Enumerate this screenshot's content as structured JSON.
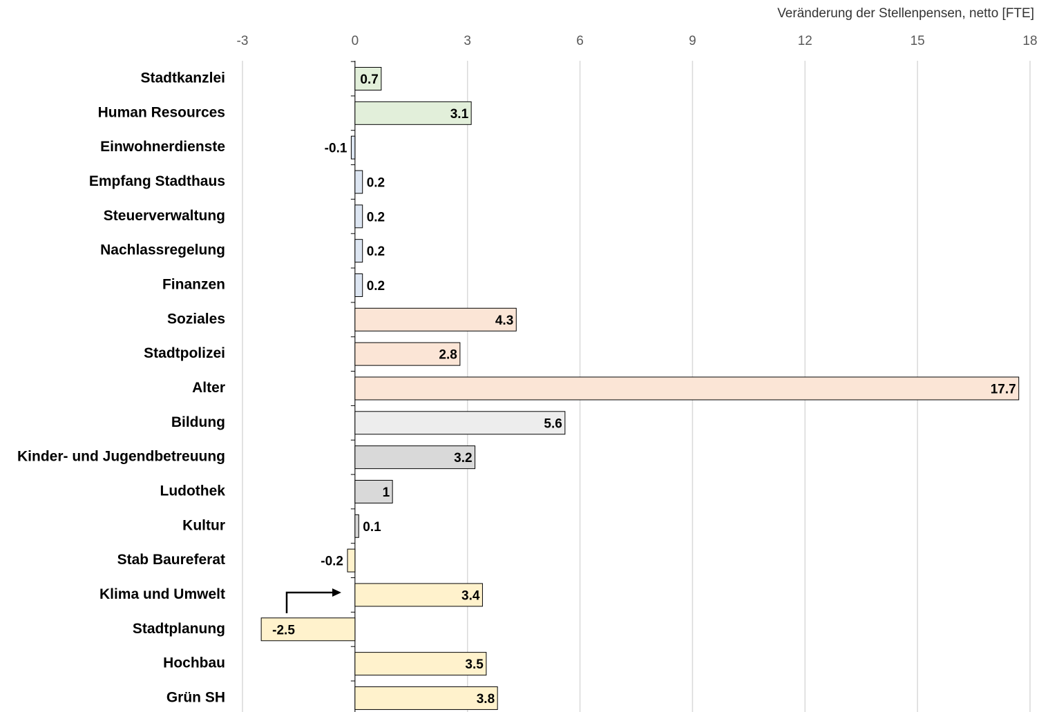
{
  "chart_data": {
    "type": "barh",
    "x_label": "Veränderung der Stellenpensen, netto [FTE]",
    "categories": [
      "Stadtkanzlei",
      "Human Resources",
      "Einwohnerdienste",
      "Empfang Stadthaus",
      "Steuerverwaltung",
      "Nachlassregelung",
      "Finanzen",
      "Soziales",
      "Stadtpolizei",
      "Alter",
      "Bildung",
      "Kinder- und Jugendbetreuung",
      "Ludothek",
      "Kultur",
      "Stab Baureferat",
      "Klima und Umwelt",
      "Stadtplanung",
      "Hochbau",
      "Grün SH"
    ],
    "values": [
      0.7,
      3.1,
      -0.1,
      0.2,
      0.2,
      0.2,
      0.2,
      4.3,
      2.8,
      17.7,
      5.6,
      3.2,
      1,
      0.1,
      -0.2,
      3.4,
      -2.5,
      3.5,
      3.8
    ],
    "colors": [
      "#e2efda",
      "#e2efda",
      "#dde6f2",
      "#dde6f2",
      "#dde6f2",
      "#dde6f2",
      "#dde6f2",
      "#fbe5d6",
      "#fbe5d6",
      "#fbe5d6",
      "#ededed",
      "#d9d9d9",
      "#d9d9d9",
      "#d9d9d9",
      "#fff2cc",
      "#fff2cc",
      "#fff2cc",
      "#fff2cc",
      "#fff2cc"
    ],
    "xlim": [
      -3,
      18
    ],
    "xticks": [
      -3,
      0,
      3,
      6,
      9,
      12,
      15,
      18
    ],
    "grid": true
  }
}
